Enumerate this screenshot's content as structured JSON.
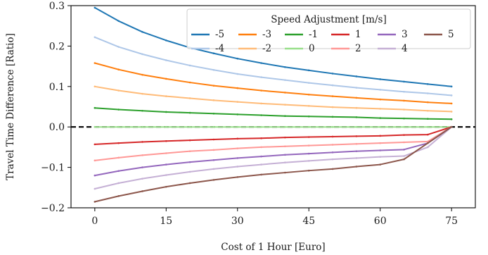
{
  "chart_data": {
    "type": "line",
    "xlabel": "Cost of 1 Hour [Euro]",
    "ylabel": "Travel Time Difference [Ratio]",
    "xlim": [
      -5,
      80
    ],
    "ylim": [
      -0.2,
      0.3
    ],
    "xticks": [
      0,
      15,
      30,
      45,
      60,
      75
    ],
    "yticks": [
      -0.2,
      -0.1,
      0.0,
      0.1,
      0.2,
      0.3
    ],
    "ytick_labels": [
      "−0.2",
      "−0.1",
      "0.0",
      "0.1",
      "0.2",
      "0.3"
    ],
    "reference_line": {
      "y": 0.0,
      "style": "dashed",
      "color": "#000000"
    },
    "legend": {
      "title": "Speed Adjustment [m/s]",
      "placement": "top-right",
      "columns": 6
    },
    "x": [
      0,
      5,
      10,
      15,
      20,
      25,
      30,
      35,
      40,
      45,
      50,
      55,
      60,
      65,
      70,
      75
    ],
    "series": [
      {
        "name": "-5",
        "color": "#1f77b4",
        "values": [
          0.295,
          0.262,
          0.235,
          0.214,
          0.196,
          0.182,
          0.169,
          0.158,
          0.148,
          0.14,
          0.132,
          0.125,
          0.118,
          0.112,
          0.106,
          0.1
        ]
      },
      {
        "name": "-4",
        "color": "#aec7e8",
        "values": [
          0.222,
          0.198,
          0.18,
          0.165,
          0.152,
          0.141,
          0.131,
          0.123,
          0.116,
          0.109,
          0.103,
          0.097,
          0.092,
          0.087,
          0.083,
          0.078
        ]
      },
      {
        "name": "-3",
        "color": "#ff7f0e",
        "values": [
          0.158,
          0.142,
          0.129,
          0.119,
          0.11,
          0.102,
          0.096,
          0.09,
          0.085,
          0.08,
          0.076,
          0.072,
          0.068,
          0.065,
          0.061,
          0.058
        ]
      },
      {
        "name": "-2",
        "color": "#ffbb78",
        "values": [
          0.1,
          0.09,
          0.082,
          0.076,
          0.071,
          0.066,
          0.062,
          0.058,
          0.055,
          0.052,
          0.049,
          0.047,
          0.045,
          0.043,
          0.04,
          0.038
        ]
      },
      {
        "name": "-1",
        "color": "#2ca02c",
        "values": [
          0.047,
          0.043,
          0.04,
          0.037,
          0.035,
          0.033,
          0.031,
          0.029,
          0.027,
          0.026,
          0.025,
          0.024,
          0.022,
          0.021,
          0.02,
          0.019
        ]
      },
      {
        "name": "0",
        "color": "#98df8a",
        "values": [
          0.0,
          0.0,
          0.0,
          0.0,
          0.0,
          0.0,
          0.0,
          0.0,
          0.0,
          0.0,
          0.0,
          0.0,
          0.0,
          0.0,
          0.0,
          0.0
        ]
      },
      {
        "name": "1",
        "color": "#d62728",
        "values": [
          -0.043,
          -0.04,
          -0.037,
          -0.035,
          -0.033,
          -0.031,
          -0.029,
          -0.028,
          -0.026,
          -0.025,
          -0.024,
          -0.023,
          -0.022,
          -0.02,
          -0.019,
          0.0
        ]
      },
      {
        "name": "2",
        "color": "#ff9896",
        "values": [
          -0.083,
          -0.076,
          -0.07,
          -0.065,
          -0.06,
          -0.057,
          -0.053,
          -0.05,
          -0.048,
          -0.046,
          -0.044,
          -0.042,
          -0.04,
          -0.038,
          -0.036,
          0.0
        ]
      },
      {
        "name": "3",
        "color": "#9467bd",
        "values": [
          -0.12,
          -0.109,
          -0.1,
          -0.093,
          -0.087,
          -0.082,
          -0.077,
          -0.073,
          -0.069,
          -0.066,
          -0.063,
          -0.06,
          -0.058,
          -0.056,
          -0.04,
          0.0
        ]
      },
      {
        "name": "4",
        "color": "#c5b0d5",
        "values": [
          -0.153,
          -0.139,
          -0.128,
          -0.119,
          -0.111,
          -0.104,
          -0.098,
          -0.093,
          -0.088,
          -0.084,
          -0.08,
          -0.077,
          -0.074,
          -0.072,
          -0.05,
          0.0
        ]
      },
      {
        "name": "5",
        "color": "#8c564b",
        "values": [
          -0.185,
          -0.171,
          -0.159,
          -0.148,
          -0.139,
          -0.131,
          -0.124,
          -0.118,
          -0.113,
          -0.108,
          -0.104,
          -0.098,
          -0.093,
          -0.08,
          -0.04,
          0.0
        ]
      }
    ]
  }
}
